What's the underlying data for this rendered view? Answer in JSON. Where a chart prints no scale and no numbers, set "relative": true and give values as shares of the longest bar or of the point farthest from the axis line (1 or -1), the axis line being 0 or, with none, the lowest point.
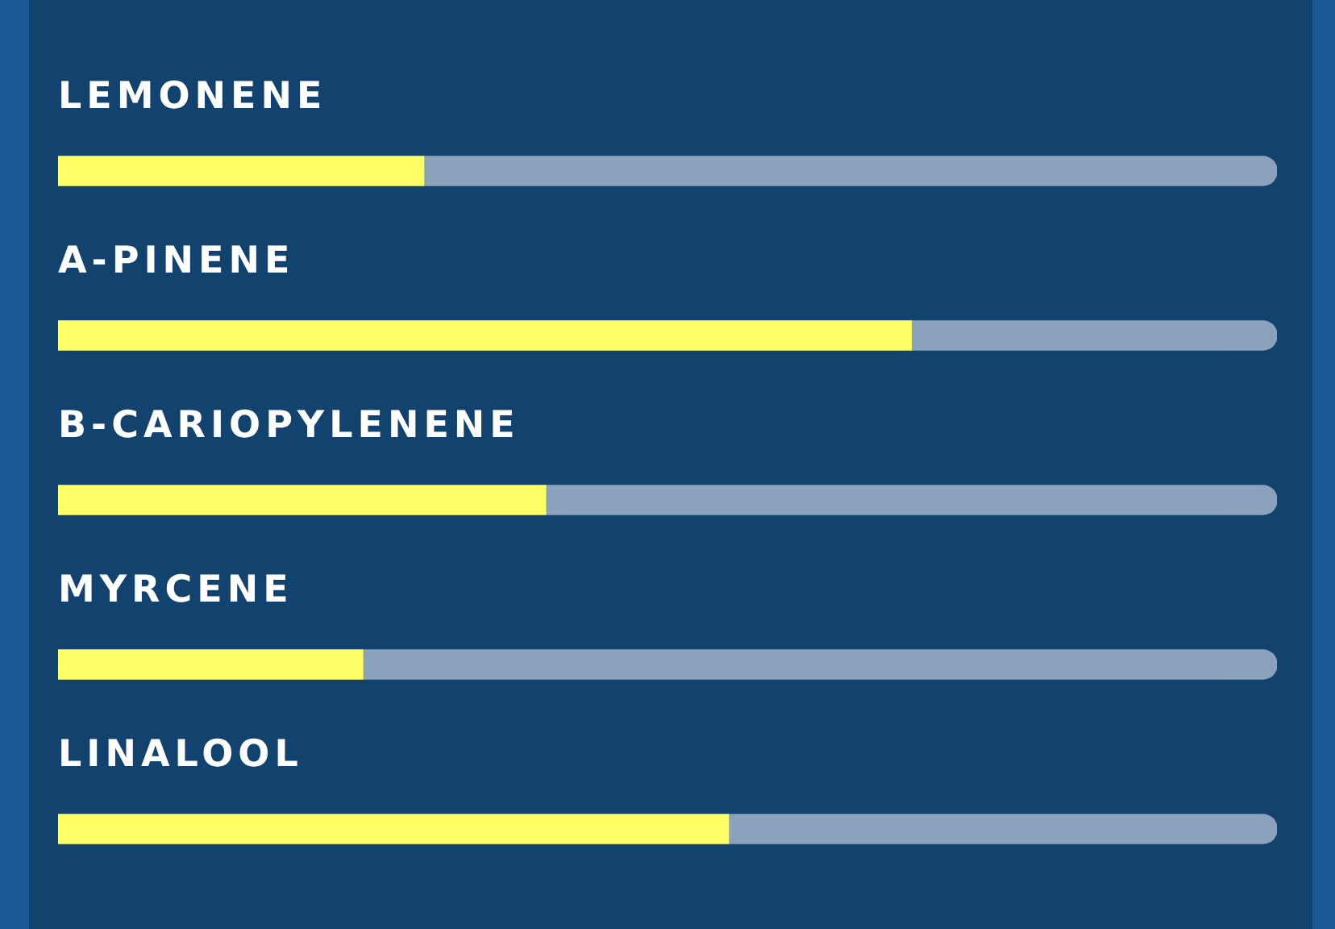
{
  "chart_data": {
    "type": "bar",
    "orientation": "horizontal",
    "stacked": true,
    "relative": true,
    "categories": [
      "LEMONENE",
      "A-PINENE",
      "B-CARIOPYLENENE",
      "MYRCENE",
      "LINALOOL"
    ],
    "series": [
      {
        "color": "#ffff66",
        "values": [
          0.3,
          0.7,
          0.4,
          0.25,
          0.55
        ]
      },
      {
        "color": "#8aa2bb",
        "values": [
          0.7,
          0.3,
          0.6,
          0.75,
          0.45
        ]
      }
    ]
  }
}
